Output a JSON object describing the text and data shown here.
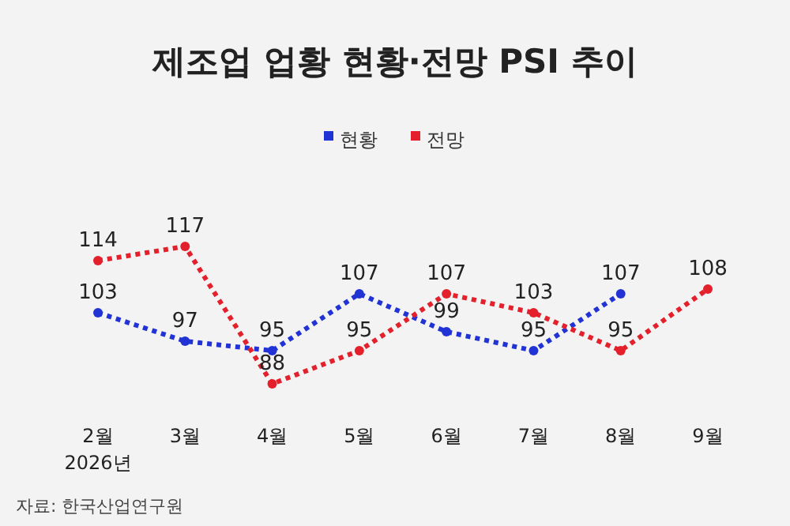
{
  "chart_data": {
    "type": "line",
    "title": "제조업 업황 현황·전망 PSI 추이",
    "categories": [
      "2월\n2026년",
      "3월",
      "4월",
      "5월",
      "6월",
      "7월",
      "8월",
      "9월"
    ],
    "series": [
      {
        "name": "현황",
        "color": "#2233d6",
        "values": [
          103,
          97,
          95,
          107,
          99,
          95,
          107,
          null
        ]
      },
      {
        "name": "전망",
        "color": "#e3202b",
        "values": [
          114,
          117,
          88,
          95,
          107,
          103,
          95,
          108
        ]
      }
    ],
    "tick_labels": "x",
    "data_labels": true,
    "legend": "top",
    "marker": "circle",
    "line_style": "dotted",
    "grid": false,
    "annotations": [
      "자료: 한국산업연구원"
    ]
  }
}
